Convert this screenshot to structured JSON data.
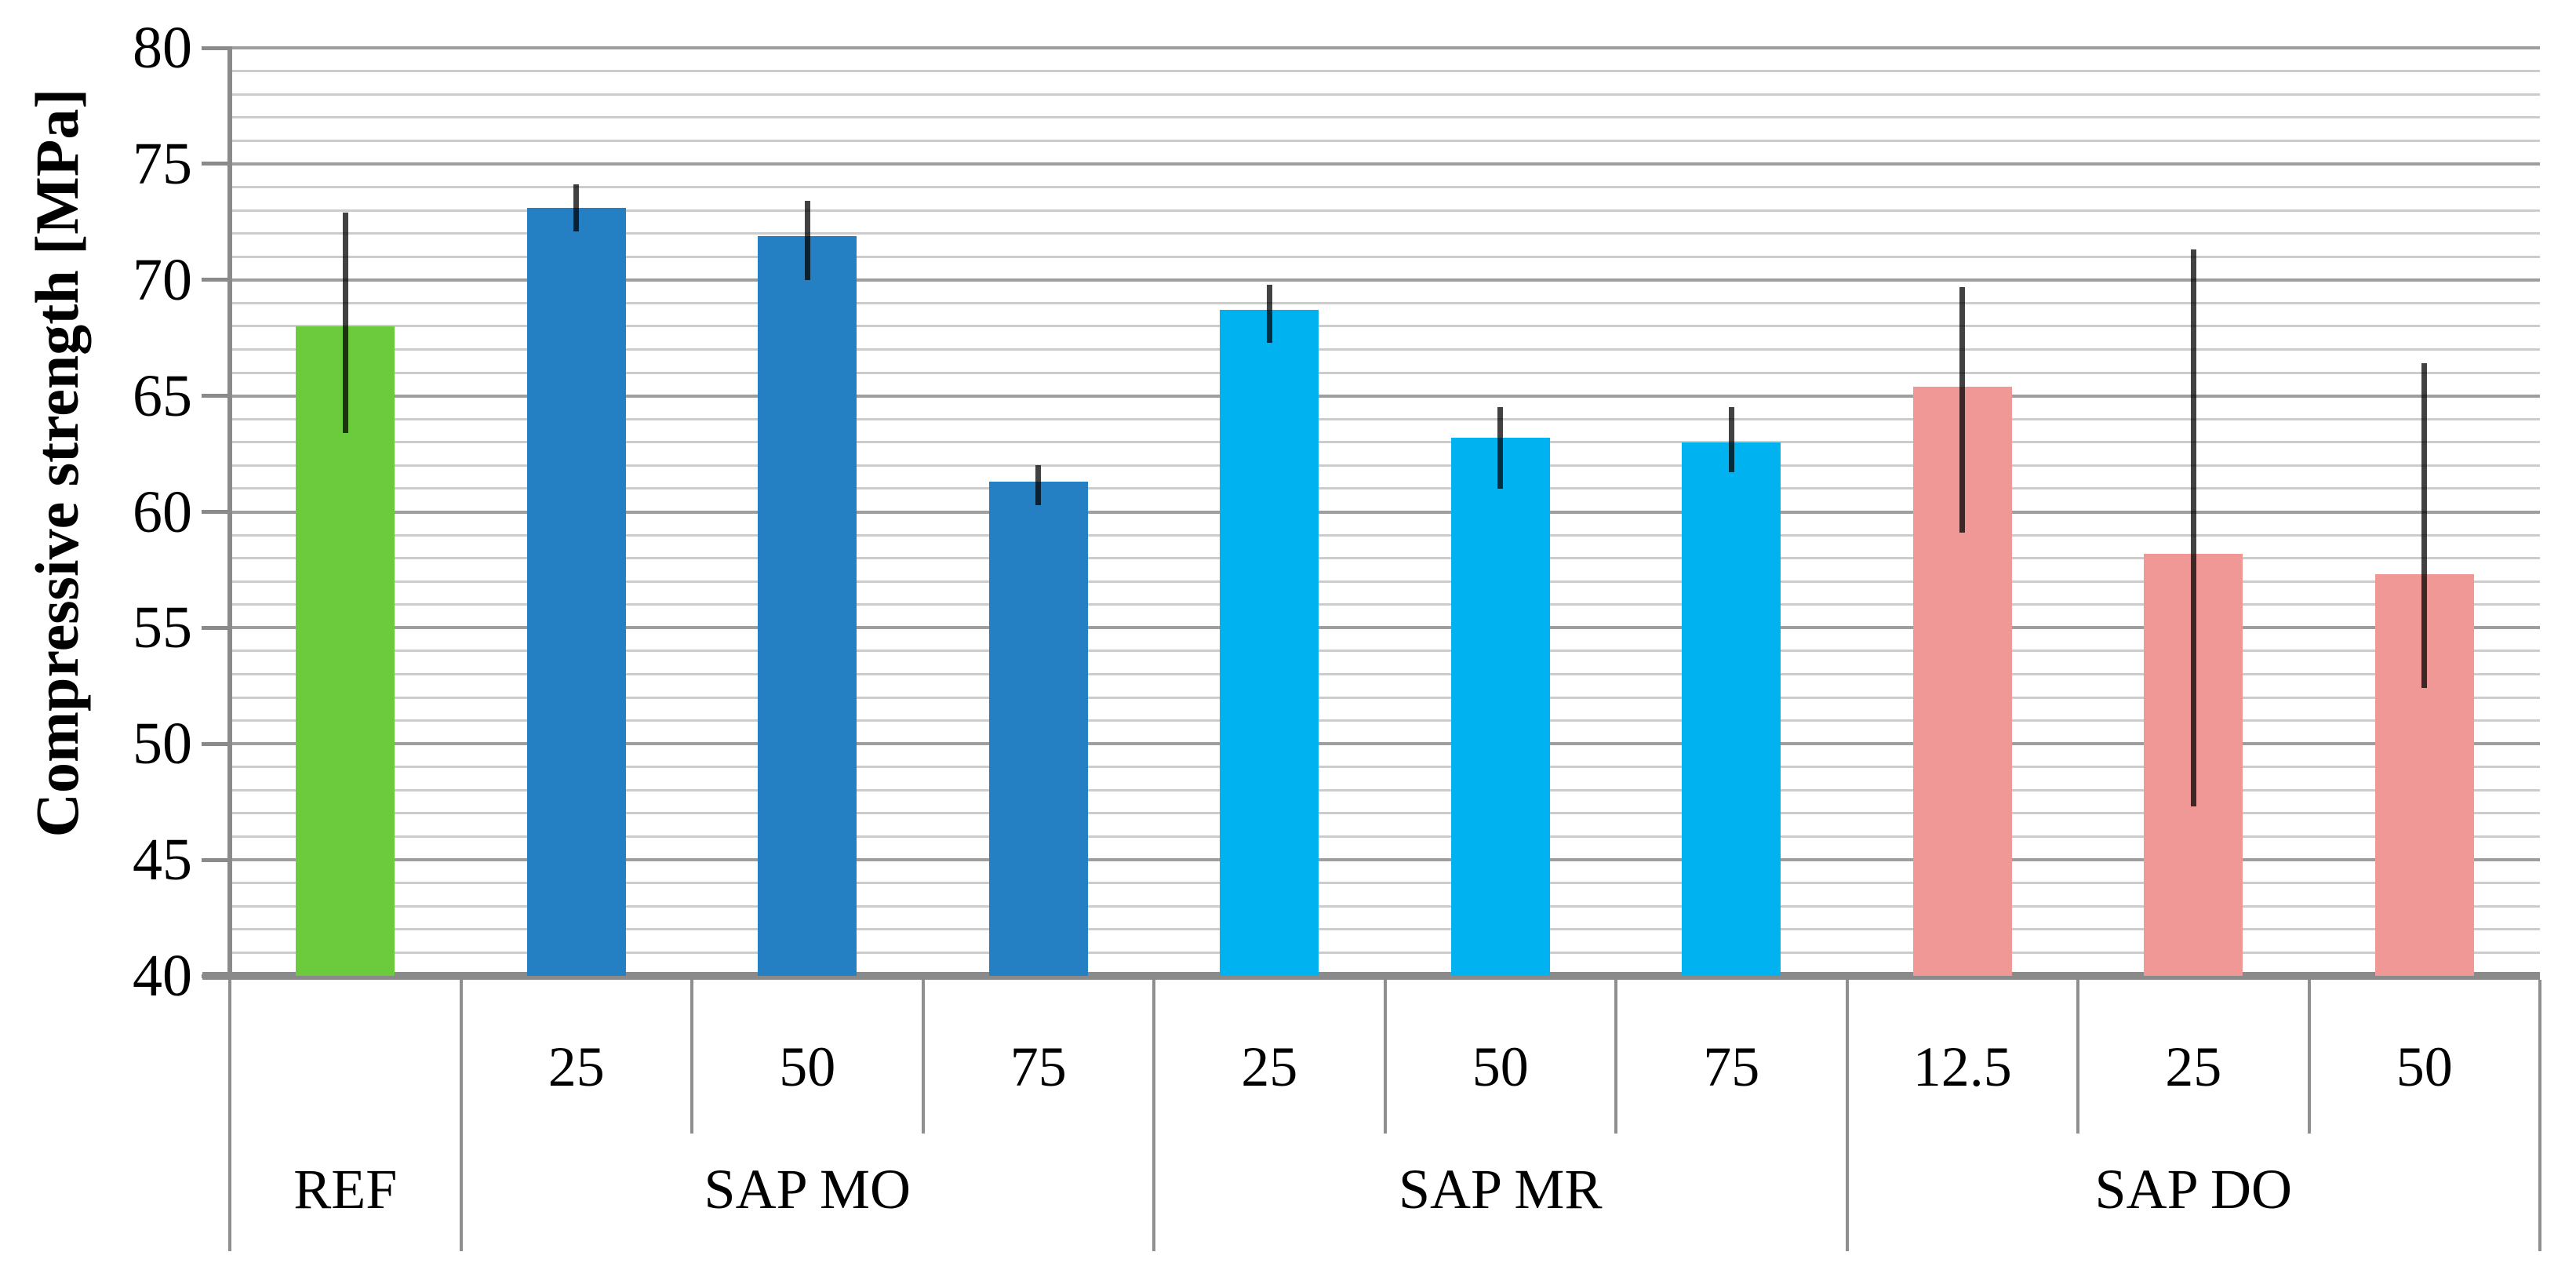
{
  "figure": {
    "background": "#ffffff"
  },
  "chart_data": {
    "type": "bar",
    "title": "",
    "xlabel": "",
    "ylabel": "Compressive strength [MPa]",
    "ylim": [
      40,
      80
    ],
    "ytick_major_step": 5,
    "ytick_minor_step": 1,
    "yticks": [
      40,
      45,
      50,
      55,
      60,
      65,
      70,
      75,
      80
    ],
    "grid": {
      "minor": "on",
      "major": "on",
      "minor_color": "#cccccc",
      "major_color": "#9e9e9e"
    },
    "legend_position": "none",
    "axis_color": "#8a8a8a",
    "error_bar_color": "rgba(0,0,0,0.74)",
    "groups": [
      {
        "label": "REF",
        "color": "#6cca3d",
        "bars": [
          {
            "sublabel": "",
            "value": 68.0,
            "err_low": 63.4,
            "err_high": 72.9
          }
        ]
      },
      {
        "label": "SAP MO",
        "color": "#2480c2",
        "bars": [
          {
            "sublabel": "25",
            "value": 73.1,
            "err_low": 72.1,
            "err_high": 74.1
          },
          {
            "sublabel": "50",
            "value": 71.9,
            "err_low": 70.0,
            "err_high": 73.4
          },
          {
            "sublabel": "75",
            "value": 61.3,
            "err_low": 60.3,
            "err_high": 62.0
          }
        ]
      },
      {
        "label": "SAP MR",
        "color": "#00b2f0",
        "bars": [
          {
            "sublabel": "25",
            "value": 68.7,
            "err_low": 67.3,
            "err_high": 69.8
          },
          {
            "sublabel": "50",
            "value": 63.2,
            "err_low": 61.0,
            "err_high": 64.5
          },
          {
            "sublabel": "75",
            "value": 63.0,
            "err_low": 61.7,
            "err_high": 64.5
          }
        ]
      },
      {
        "label": "SAP DO",
        "color": "#f09896",
        "bars": [
          {
            "sublabel": "12.5",
            "value": 65.4,
            "err_low": 59.1,
            "err_high": 69.7
          },
          {
            "sublabel": "25",
            "value": 58.2,
            "err_low": 47.3,
            "err_high": 71.3
          },
          {
            "sublabel": "50",
            "value": 57.3,
            "err_low": 52.4,
            "err_high": 66.4
          }
        ]
      }
    ]
  }
}
